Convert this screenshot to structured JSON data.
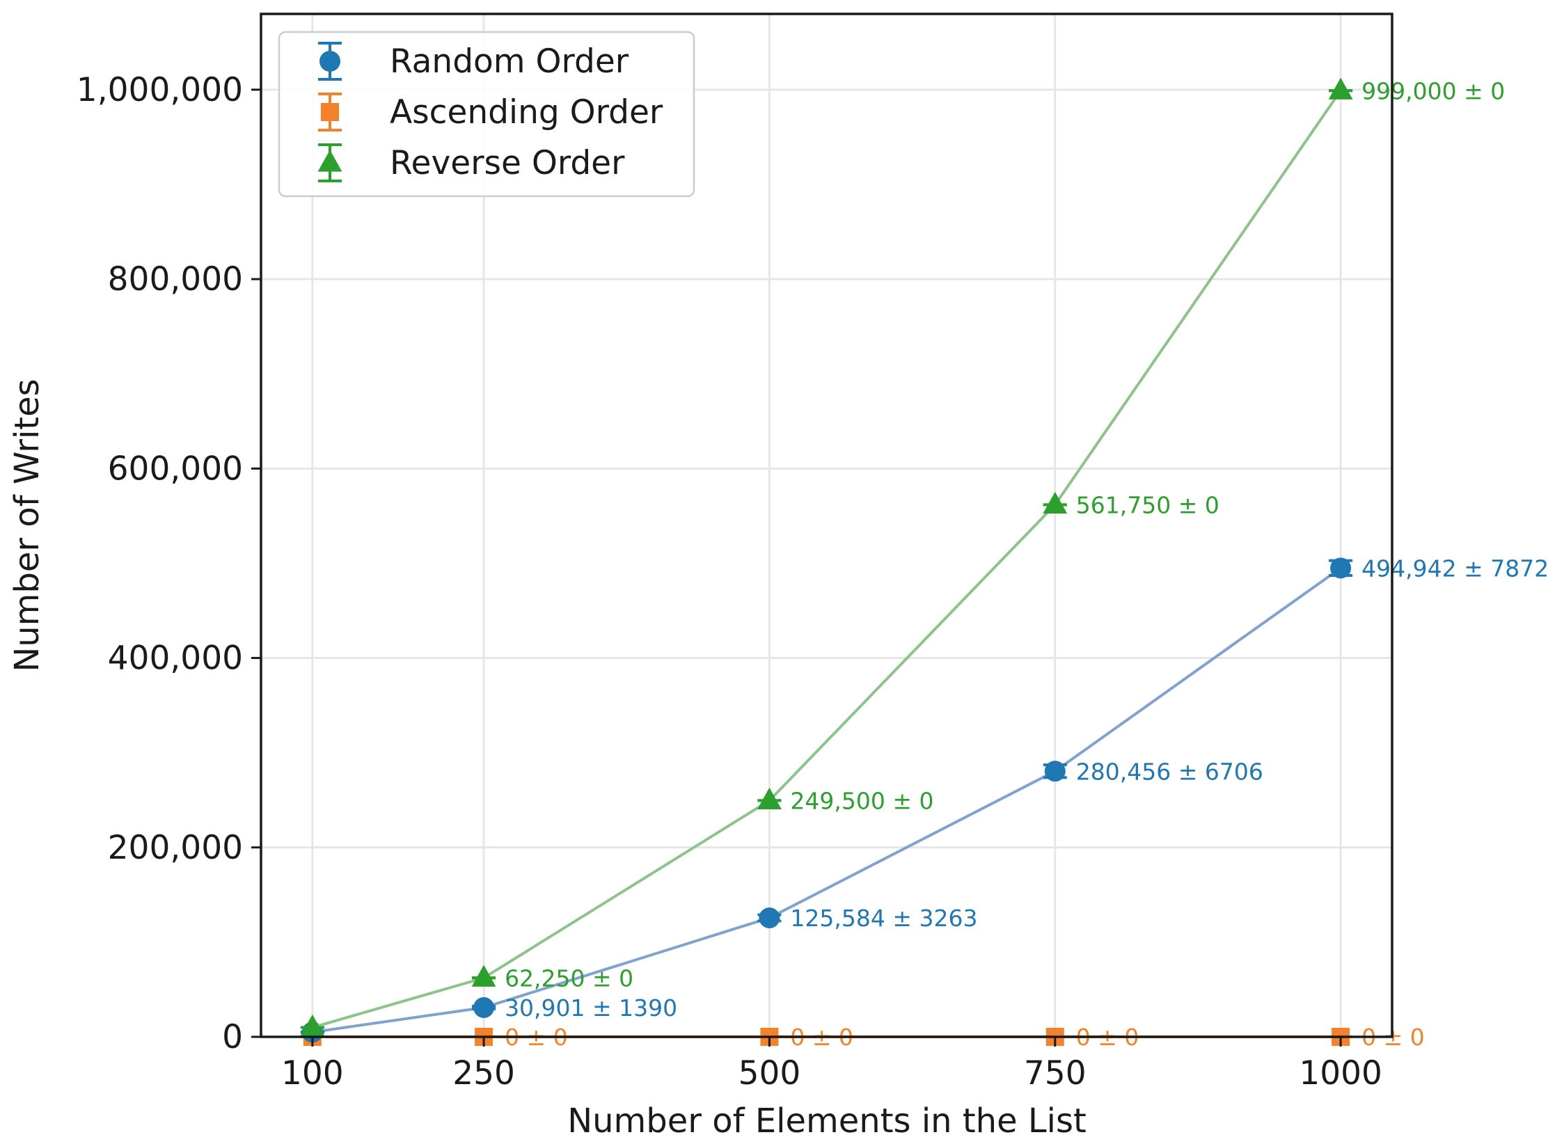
{
  "chart_data": {
    "type": "line",
    "xlabel": "Number of Elements in the List",
    "ylabel": "Number of Writes",
    "x": [
      100,
      250,
      500,
      750,
      1000
    ],
    "xlim": [
      55,
      1045
    ],
    "ylim": [
      0,
      1080000
    ],
    "xticks": [
      100,
      250,
      500,
      750,
      1000
    ],
    "xtick_labels": [
      "100",
      "250",
      "500",
      "750",
      "1000"
    ],
    "yticks": [
      0,
      200000,
      400000,
      600000,
      800000,
      1000000
    ],
    "ytick_labels": [
      "0",
      "200,000",
      "400,000",
      "600,000",
      "800,000",
      "1,000,000"
    ],
    "grid": true,
    "legend_position": "top-left",
    "series": [
      {
        "name": "Random Order",
        "marker": "circle",
        "color": "#1f77b4",
        "line_color": "#7fa2cf",
        "values": [
          4950,
          30901,
          125584,
          280456,
          494942
        ],
        "errors": [
          300,
          1390,
          3263,
          6706,
          7872
        ],
        "labels": [
          "",
          "30,901 ± 1390",
          "125,584 ± 3263",
          "280,456 ± 6706",
          "494,942 ± 7872"
        ]
      },
      {
        "name": "Ascending Order",
        "marker": "square",
        "color": "#f4822a",
        "line_color": "#f4822a",
        "values": [
          0,
          0,
          0,
          0,
          0
        ],
        "errors": [
          0,
          0,
          0,
          0,
          0
        ],
        "labels": [
          "",
          "0 ± 0",
          "0 ± 0",
          "0 ± 0",
          "0 ± 0"
        ]
      },
      {
        "name": "Reverse Order",
        "marker": "triangle",
        "color": "#2ca02c",
        "line_color": "#8cc48a",
        "values": [
          9900,
          62250,
          249500,
          561750,
          999000
        ],
        "errors": [
          0,
          0,
          0,
          0,
          0
        ],
        "labels": [
          "",
          "62,250 ± 0",
          "249,500 ± 0",
          "561,750 ± 0",
          "999,000 ± 0"
        ]
      }
    ]
  }
}
